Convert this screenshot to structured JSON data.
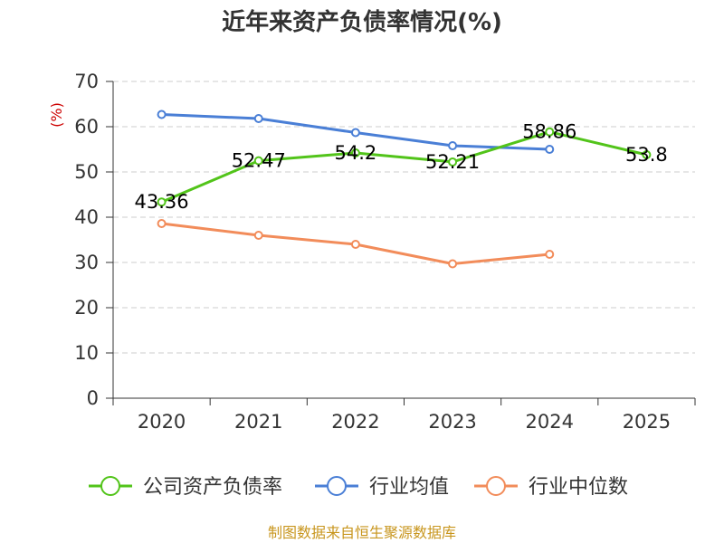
{
  "chart_data": {
    "type": "line",
    "title": "近年来资产负债率情况(%)",
    "ylabel": "(%)",
    "ylim": [
      0,
      70
    ],
    "yticks": [
      0,
      10,
      20,
      30,
      40,
      50,
      60,
      70
    ],
    "categories": [
      "2020",
      "2021",
      "2022",
      "2023",
      "2024",
      "2025"
    ],
    "grid": true,
    "legend_position": "bottom",
    "series": [
      {
        "name": "公司资产负债率",
        "color": "#52c41a",
        "values": [
          43.36,
          52.47,
          54.2,
          52.21,
          58.86,
          53.8
        ],
        "labels": [
          "43.36",
          "52.47",
          "54.2",
          "52.21",
          "58.86",
          "53.8"
        ]
      },
      {
        "name": "行业均值",
        "color": "#4a7fd6",
        "values": [
          62.7,
          61.8,
          58.7,
          55.8,
          55.0,
          null
        ]
      },
      {
        "name": "行业中位数",
        "color": "#f28c5a",
        "values": [
          38.6,
          36.0,
          34.0,
          29.7,
          31.8,
          null
        ]
      }
    ]
  },
  "source": "制图数据来自恒生聚源数据库"
}
